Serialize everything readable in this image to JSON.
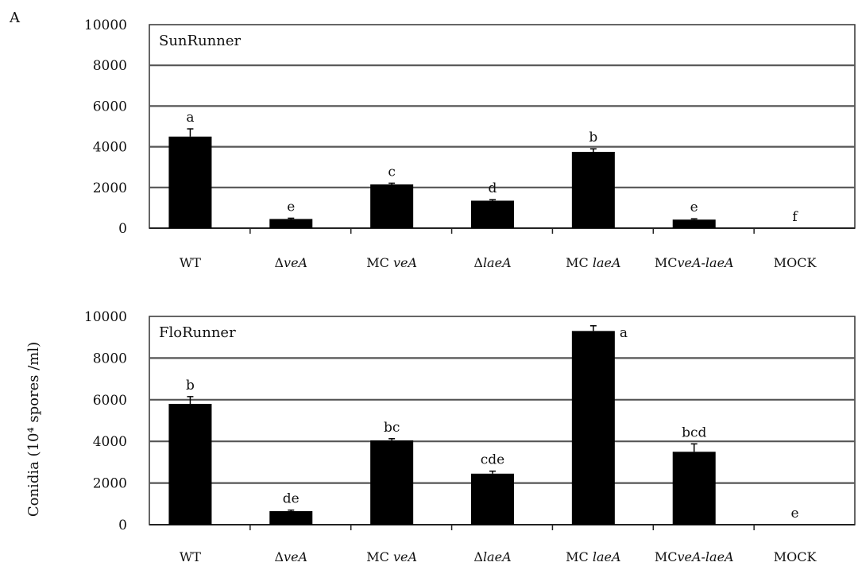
{
  "figure": {
    "panel_letter": "A",
    "ylabel": "Conidia (10⁴ spores /ml)"
  },
  "chart_data": [
    {
      "type": "bar",
      "title": "SunRunner",
      "ylim": [
        0,
        10000
      ],
      "yticks": [
        0,
        2000,
        4000,
        6000,
        8000,
        10000
      ],
      "categories": [
        {
          "pre": "",
          "it": "",
          "post": "WT"
        },
        {
          "pre": "Δ",
          "it": "veA",
          "post": ""
        },
        {
          "pre": "MC ",
          "it": "veA",
          "post": ""
        },
        {
          "pre": "Δ",
          "it": "laeA",
          "post": ""
        },
        {
          "pre": "MC ",
          "it": "laeA",
          "post": ""
        },
        {
          "pre": "MC",
          "it": "veA-laeA",
          "post": ""
        },
        {
          "pre": "",
          "it": "",
          "post": "MOCK"
        }
      ],
      "values": [
        4500,
        450,
        2150,
        1350,
        3750,
        420,
        0
      ],
      "errors": [
        380,
        40,
        60,
        50,
        150,
        40,
        0
      ],
      "significance": [
        "a",
        "e",
        "c",
        "d",
        "b",
        "e",
        "f"
      ],
      "grid": true,
      "bar_color": "#000000"
    },
    {
      "type": "bar",
      "title": "FloRunner",
      "ylim": [
        0,
        10000
      ],
      "yticks": [
        0,
        2000,
        4000,
        6000,
        8000,
        10000
      ],
      "categories": [
        {
          "pre": "",
          "it": "",
          "post": "WT"
        },
        {
          "pre": "Δ",
          "it": "veA",
          "post": ""
        },
        {
          "pre": "MC ",
          "it": "veA",
          "post": ""
        },
        {
          "pre": "Δ",
          "it": "laeA",
          "post": ""
        },
        {
          "pre": "MC ",
          "it": "laeA",
          "post": ""
        },
        {
          "pre": "MC",
          "it": "veA-laeA",
          "post": ""
        },
        {
          "pre": "",
          "it": "",
          "post": "MOCK"
        }
      ],
      "values": [
        5800,
        650,
        4050,
        2450,
        9300,
        3500,
        0
      ],
      "errors": [
        350,
        50,
        80,
        120,
        250,
        380,
        0
      ],
      "significance": [
        "b",
        "de",
        "bc",
        "cde",
        "a",
        "bcd",
        "e"
      ],
      "grid": true,
      "bar_color": "#000000"
    }
  ]
}
